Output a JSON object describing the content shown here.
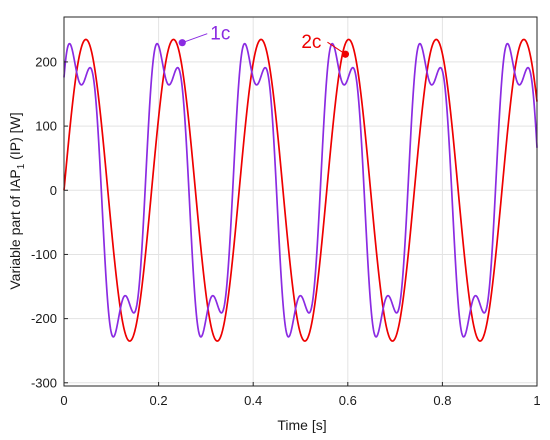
{
  "chart_data": {
    "type": "line",
    "xlabel": "Time [s]",
    "ylabel": "Variable part of IAP",
    "ylabel_sub": "1",
    "ylabel_tail": " (IP)  [W]",
    "xlim": [
      0,
      1
    ],
    "ylim": [
      -305,
      270
    ],
    "grid": true,
    "xticks": [
      0,
      0.2,
      0.4,
      0.6,
      0.8,
      1
    ],
    "xtick_labels": [
      "0",
      "0.2",
      "0.4",
      "0.6",
      "0.8",
      "1"
    ],
    "yticks": [
      -300,
      -200,
      -100,
      0,
      100,
      200
    ],
    "ytick_labels": [
      "-300",
      "-200",
      "-100",
      "0",
      "100",
      "200"
    ],
    "series": [
      {
        "name": "2c",
        "color": "#ee0000",
        "model": "A·sin(2π·f·t)",
        "amplitude": 235,
        "frequency_hz": 5.4
      },
      {
        "name": "1c",
        "color": "#8a2be2",
        "model": "A·sin(2π·f·t + φ) + B·sin(2π·3f·t + φ3)",
        "amplitude": 232,
        "frequency_hz": 5.4,
        "phase": 0.52,
        "harmonic3_amplitude": 65,
        "harmonic3_phase": 1.2
      }
    ],
    "annotations": [
      {
        "text": "1c",
        "series": "1c",
        "x": 0.25,
        "y": 230,
        "color": "#8a2be2"
      },
      {
        "text": "2c",
        "series": "2c",
        "x": 0.595,
        "y": 212,
        "color": "#ee0000"
      }
    ]
  }
}
